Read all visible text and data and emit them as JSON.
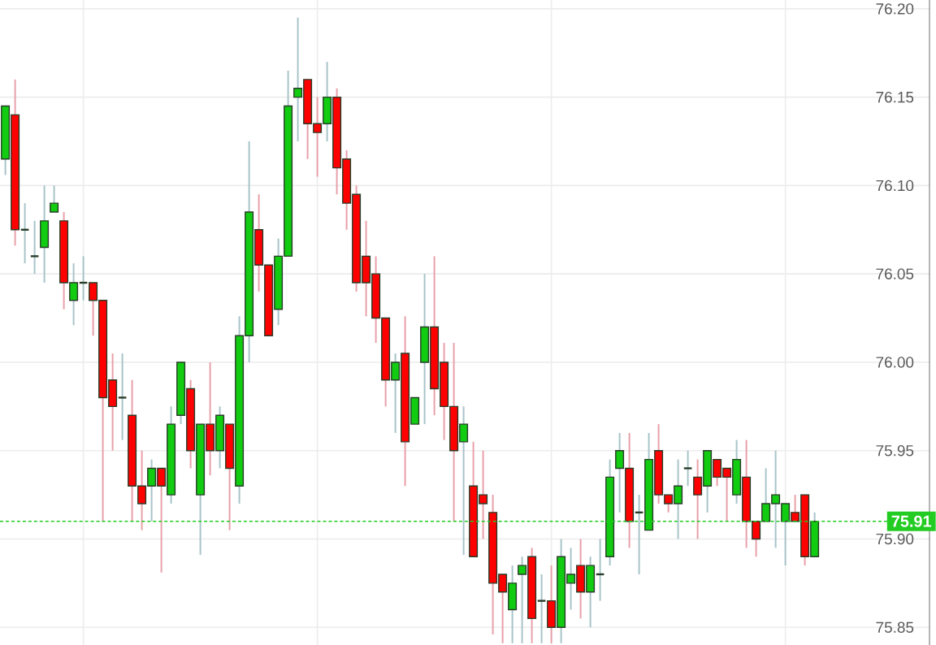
{
  "chart_data": {
    "type": "candlestick",
    "categories": [
      null,
      null,
      null,
      null,
      null,
      null,
      null,
      null,
      null,
      null,
      null,
      null,
      null,
      null,
      null,
      null,
      null,
      null,
      null,
      null,
      null,
      null,
      null,
      null,
      null,
      null,
      null,
      null,
      null,
      null,
      null,
      null,
      null,
      null,
      null,
      null,
      null,
      null,
      null,
      null,
      null,
      null,
      null,
      null,
      null,
      null,
      null,
      null,
      null,
      null,
      null,
      null,
      null,
      null,
      null,
      null,
      null,
      null,
      null,
      null,
      null,
      null,
      null,
      null,
      null,
      null,
      null,
      null,
      null,
      null,
      null,
      null,
      null,
      null,
      null,
      null,
      null,
      null,
      null,
      null,
      null,
      null,
      null,
      null
    ],
    "ohlc": [
      [
        76.115,
        76.145,
        76.106,
        76.145
      ],
      [
        76.14,
        76.16,
        76.066,
        76.075
      ],
      [
        76.075,
        76.09,
        76.056,
        76.075
      ],
      [
        76.06,
        76.08,
        76.05,
        76.06
      ],
      [
        76.065,
        76.1,
        76.045,
        76.08
      ],
      [
        76.085,
        76.1,
        76.085,
        76.09
      ],
      [
        76.08,
        76.085,
        76.03,
        76.045
      ],
      [
        76.035,
        76.056,
        76.021,
        76.045
      ],
      [
        76.045,
        76.06,
        76.035,
        76.045
      ],
      [
        76.045,
        76.045,
        76.015,
        76.035
      ],
      [
        76.035,
        76.035,
        75.91,
        75.98
      ],
      [
        75.99,
        76.005,
        75.95,
        75.975
      ],
      [
        75.98,
        76.005,
        75.956,
        75.98
      ],
      [
        75.97,
        75.99,
        75.91,
        75.93
      ],
      [
        75.93,
        75.95,
        75.905,
        75.92
      ],
      [
        75.93,
        75.945,
        75.91,
        75.94
      ],
      [
        75.94,
        75.94,
        75.881,
        75.93
      ],
      [
        75.925,
        75.975,
        75.92,
        75.965
      ],
      [
        75.97,
        76.0,
        75.965,
        76.0
      ],
      [
        75.985,
        75.99,
        75.94,
        75.95
      ],
      [
        75.925,
        75.965,
        75.891,
        75.965
      ],
      [
        75.965,
        76.0,
        75.936,
        75.95
      ],
      [
        75.95,
        75.975,
        75.94,
        75.97
      ],
      [
        75.965,
        75.965,
        75.905,
        75.94
      ],
      [
        75.93,
        76.026,
        75.92,
        76.015
      ],
      [
        76.015,
        76.125,
        76.0,
        76.085
      ],
      [
        76.075,
        76.095,
        76.04,
        76.055
      ],
      [
        76.055,
        76.055,
        76.015,
        76.015
      ],
      [
        76.03,
        76.07,
        76.021,
        76.06
      ],
      [
        76.06,
        76.165,
        76.06,
        76.145
      ],
      [
        76.15,
        76.195,
        76.125,
        76.155
      ],
      [
        76.16,
        76.16,
        76.115,
        76.135
      ],
      [
        76.135,
        76.15,
        76.105,
        76.13
      ],
      [
        76.135,
        76.17,
        76.125,
        76.15
      ],
      [
        76.15,
        76.155,
        76.095,
        76.11
      ],
      [
        76.115,
        76.12,
        76.075,
        76.09
      ],
      [
        76.095,
        76.1,
        76.04,
        76.045
      ],
      [
        76.06,
        76.08,
        76.026,
        76.045
      ],
      [
        76.05,
        76.06,
        76.011,
        76.025
      ],
      [
        76.025,
        76.025,
        75.975,
        75.99
      ],
      [
        75.99,
        76.005,
        75.96,
        76.0
      ],
      [
        76.005,
        76.026,
        75.93,
        75.955
      ],
      [
        75.965,
        75.98,
        75.965,
        75.98
      ],
      [
        76.0,
        76.05,
        75.965,
        76.02
      ],
      [
        76.02,
        76.06,
        75.97,
        75.985
      ],
      [
        76.0,
        76.011,
        75.956,
        75.975
      ],
      [
        75.975,
        76.011,
        75.91,
        75.95
      ],
      [
        75.955,
        75.975,
        75.891,
        75.965
      ],
      [
        75.93,
        75.955,
        75.89,
        75.89
      ],
      [
        75.925,
        75.95,
        75.9,
        75.92
      ],
      [
        75.915,
        75.925,
        75.846,
        75.875
      ],
      [
        75.88,
        75.88,
        75.841,
        75.87
      ],
      [
        75.86,
        75.885,
        75.841,
        75.875
      ],
      [
        75.88,
        75.89,
        75.841,
        75.885
      ],
      [
        75.89,
        75.895,
        75.841,
        75.855
      ],
      [
        75.865,
        75.88,
        75.841,
        75.865
      ],
      [
        75.865,
        75.885,
        75.841,
        75.85
      ],
      [
        75.85,
        75.9,
        75.841,
        75.89
      ],
      [
        75.875,
        75.895,
        75.86,
        75.88
      ],
      [
        75.885,
        75.9,
        75.855,
        75.87
      ],
      [
        75.87,
        75.89,
        75.85,
        75.885
      ],
      [
        75.88,
        75.9,
        75.865,
        75.88
      ],
      [
        75.89,
        75.945,
        75.885,
        75.935
      ],
      [
        75.94,
        75.96,
        75.915,
        75.95
      ],
      [
        75.94,
        75.96,
        75.895,
        75.91
      ],
      [
        75.915,
        75.925,
        75.88,
        75.915
      ],
      [
        75.905,
        75.96,
        75.905,
        75.945
      ],
      [
        75.95,
        75.965,
        75.92,
        75.925
      ],
      [
        75.925,
        75.925,
        75.915,
        75.92
      ],
      [
        75.92,
        75.945,
        75.9,
        75.93
      ],
      [
        75.94,
        75.95,
        75.93,
        75.94
      ],
      [
        75.935,
        75.945,
        75.9,
        75.925
      ],
      [
        75.93,
        75.95,
        75.915,
        75.95
      ],
      [
        75.945,
        75.945,
        75.93,
        75.935
      ],
      [
        75.94,
        75.94,
        75.91,
        75.935
      ],
      [
        75.925,
        75.956,
        75.92,
        75.945
      ],
      [
        75.935,
        75.956,
        75.895,
        75.91
      ],
      [
        75.91,
        75.91,
        75.89,
        75.9
      ],
      [
        75.91,
        75.94,
        75.91,
        75.92
      ],
      [
        75.92,
        75.95,
        75.895,
        75.925
      ],
      [
        75.91,
        75.92,
        75.885,
        75.92
      ],
      [
        75.915,
        75.925,
        75.91,
        75.91
      ],
      [
        75.925,
        75.925,
        75.885,
        75.89
      ],
      [
        75.89,
        75.915,
        75.89,
        75.91
      ]
    ],
    "ylim": [
      75.84,
      76.205
    ],
    "yticks": [
      {
        "value": 75.85,
        "label": "75.85"
      },
      {
        "value": 75.9,
        "label": "75.90"
      },
      {
        "value": 75.95,
        "label": "75.95"
      },
      {
        "value": 76.0,
        "label": "76.00"
      },
      {
        "value": 76.05,
        "label": "76.05"
      },
      {
        "value": 76.1,
        "label": "76.10"
      },
      {
        "value": 76.15,
        "label": "76.15"
      },
      {
        "value": 76.2,
        "label": "76.20"
      }
    ],
    "grid": true,
    "ref_lines": [
      {
        "axis": "y",
        "value": 75.91,
        "label": "75.91",
        "color": "#22cc22",
        "line_style": "dashed"
      }
    ]
  }
}
